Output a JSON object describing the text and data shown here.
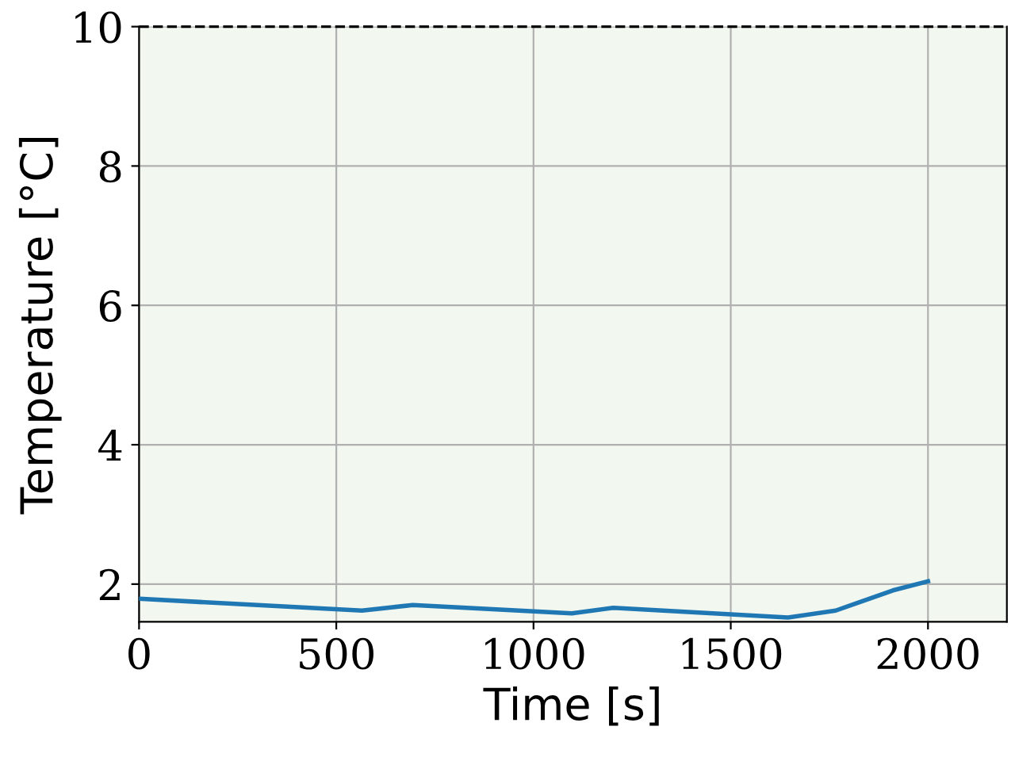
{
  "chart_data": {
    "type": "line",
    "xlabel": "Time [s]",
    "ylabel": "Temperature [°C]",
    "series": [
      {
        "color": "#1f77b4",
        "x": [
          0,
          565,
          694,
          1097,
          1202,
          1645,
          1766,
          1911,
          2000
        ],
        "values": [
          1.79,
          1.62,
          1.7,
          1.58,
          1.66,
          1.52,
          1.62,
          1.91,
          2.04
        ]
      }
    ],
    "xlim": [
      0,
      2200
    ],
    "xticks": [
      0,
      500,
      1000,
      1500,
      2000
    ],
    "ylim": [
      1.46,
      10
    ],
    "yticks": [
      2,
      4,
      6,
      8,
      10
    ],
    "ref_lines": [
      {
        "axis": "y",
        "value": 10,
        "color": "#000000",
        "line_style": "dashed"
      }
    ],
    "bands": [
      {
        "axis": "y",
        "from": 1.46,
        "to": 10,
        "color": "#f2f7ef"
      }
    ],
    "grid": true,
    "marker": "none",
    "line_style": "solid"
  }
}
